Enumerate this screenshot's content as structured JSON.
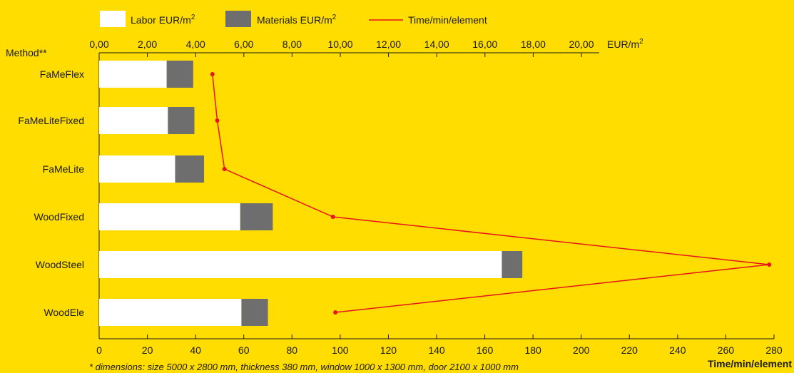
{
  "chart_data": {
    "type": "bar",
    "stacked": true,
    "orientation": "horizontal",
    "y_title": "Method**",
    "categories": [
      "FaMeFlex",
      "FaMeLiteFixed",
      "FaMeLite",
      "WoodFixed",
      "WoodSteel",
      "WoodEle"
    ],
    "series": [
      {
        "name": "Labor EUR/m",
        "name_sup": "2",
        "color": "#FFFFFF",
        "values": [
          2.8,
          2.85,
          3.15,
          5.85,
          16.7,
          5.9
        ]
      },
      {
        "name": "Materials EUR/m",
        "name_sup": "2",
        "color": "#6E6E6E",
        "values": [
          1.1,
          1.1,
          1.2,
          1.35,
          0.85,
          1.1
        ]
      }
    ],
    "line_series": {
      "name": "Time/min/element",
      "color": "#E8141B",
      "values": [
        47,
        49,
        52,
        97,
        278,
        98
      ]
    },
    "top_axis": {
      "min": 0,
      "max": 20,
      "step": 2,
      "ticks": [
        "0,00",
        "2,00",
        "4,00",
        "6,00",
        "8,00",
        "10,00",
        "12,00",
        "14,00",
        "16,00",
        "18,00",
        "20,00"
      ],
      "unit": "EUR/m",
      "unit_sup": "2"
    },
    "bottom_axis": {
      "min": 0,
      "max": 280,
      "step": 20,
      "ticks": [
        "0",
        "20",
        "40",
        "60",
        "80",
        "100",
        "120",
        "140",
        "160",
        "180",
        "200",
        "220",
        "240",
        "260",
        "280"
      ],
      "label": "Time/min/element"
    },
    "legend_position": "top",
    "grid": false
  },
  "footnote": "* dimensions: size 5000 x 2800 mm, thickness 380 mm, window 1000 x 1300 mm, door 2100 x 1000 mm"
}
